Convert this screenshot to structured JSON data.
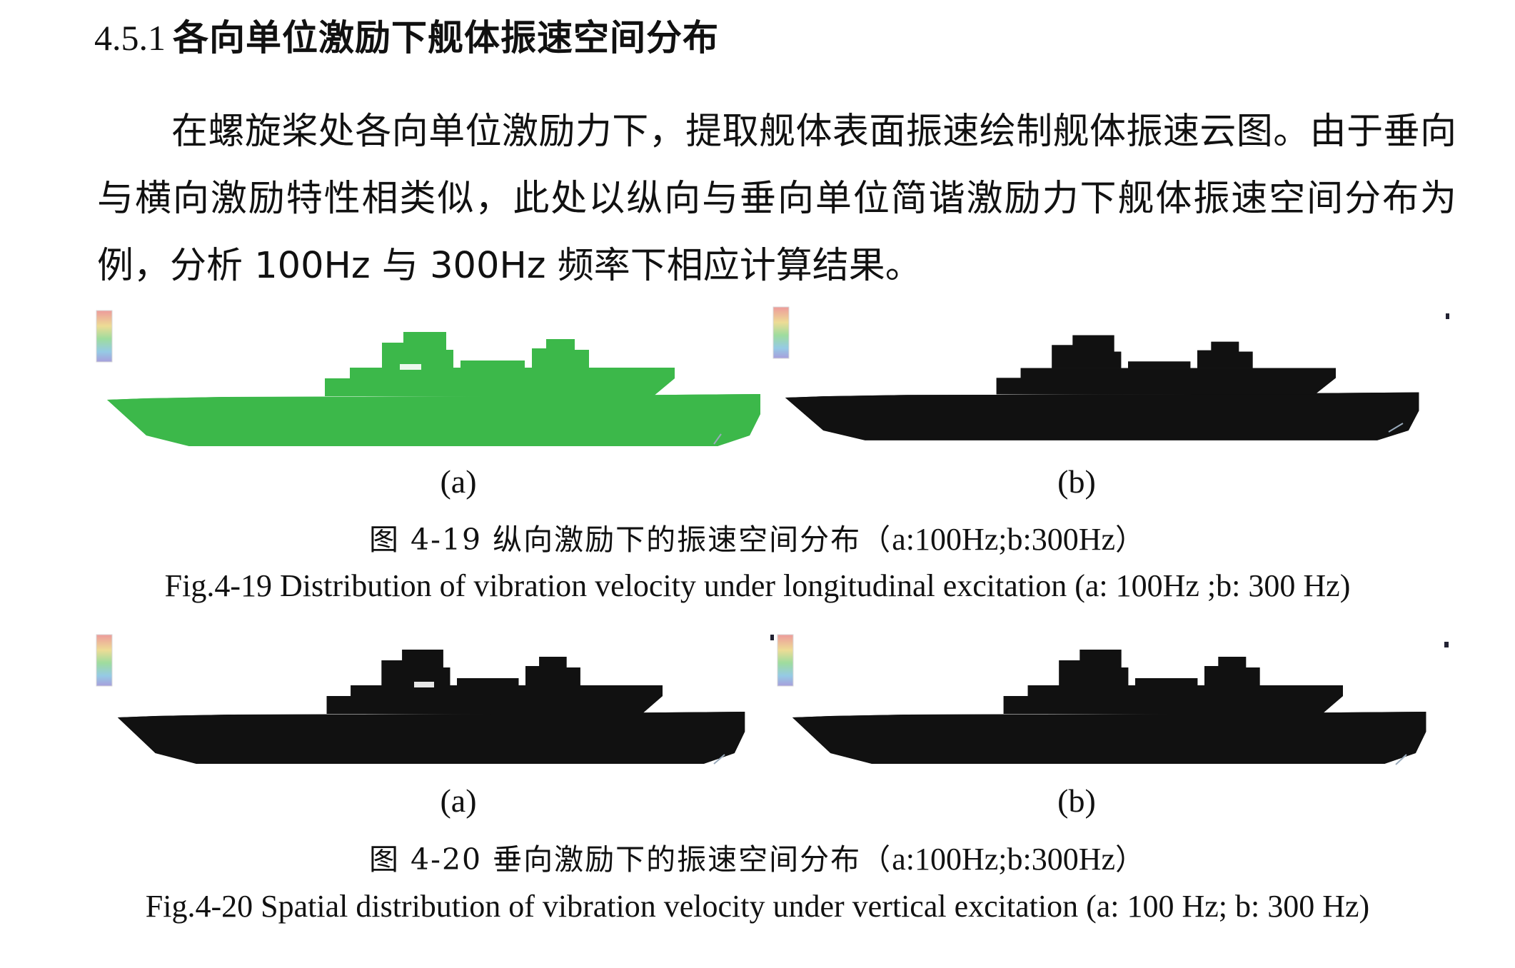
{
  "section": {
    "number": "4.5.1",
    "title": "各向单位激励下舰体振速空间分布"
  },
  "paragraph": "在螺旋桨处各向单位激励力下，提取舰体表面振速绘制舰体振速云图。由于垂向与横向激励特性相类似，此处以纵向与垂向单位简谐激励力下舰体振速空间分布为例，分析 100Hz 与 300Hz 频率下相应计算结果。",
  "figures": [
    {
      "panels": [
        {
          "label": "(a)",
          "frequency_hz": 100
        },
        {
          "label": "(b)",
          "frequency_hz": 300
        }
      ],
      "caption_cn_prefix": "图 4-19 纵向激励下的振速空间分布（",
      "caption_cn_params": "a:100Hz;b:300Hz",
      "caption_cn_suffix": "）",
      "caption_en": "Fig.4-19 Distribution of vibration velocity under longitudinal excitation (a: 100Hz ;b: 300 Hz)"
    },
    {
      "panels": [
        {
          "label": "(a)",
          "frequency_hz": 100
        },
        {
          "label": "(b)",
          "frequency_hz": 300
        }
      ],
      "caption_cn_prefix": "图 4-20 垂向激励下的振速空间分布（",
      "caption_cn_params": "a:100Hz;b:300Hz",
      "caption_cn_suffix": "）",
      "caption_en": "Fig.4-20 Spatial distribution of vibration velocity under vertical excitation (a: 100 Hz; b: 300 Hz)"
    }
  ],
  "colors": {
    "hull_green": "#3fbf3a",
    "hull_dark": "#1e8a3a",
    "hull_blue": "#2f8fa0",
    "hot_orange": "#c9a22a",
    "mesh": "#0d5a20"
  }
}
